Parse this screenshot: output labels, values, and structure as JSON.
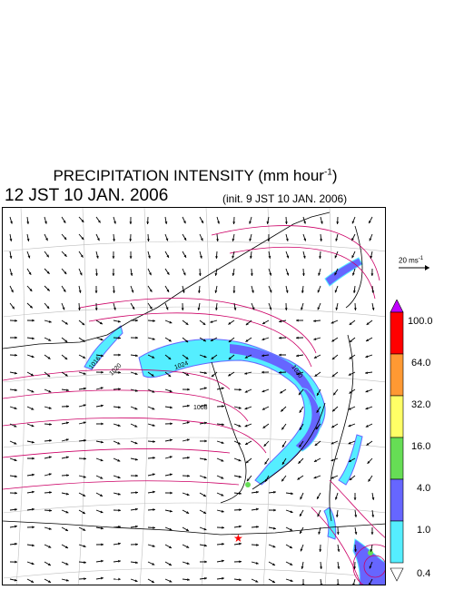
{
  "title": {
    "main": "PRECIPITATION INTENSITY (mm hour",
    "sup": "-1",
    "close": ")"
  },
  "subtitle": {
    "valid": "12 JST 10 JAN. 2006",
    "init": "(init. 9 JST 10 JAN. 2006)"
  },
  "reference_vector": {
    "label": "20 ms",
    "sup": "-1",
    "speed_ms": 20
  },
  "colorbar": {
    "levels": [
      "100.0",
      "64.0",
      "32.0",
      "16.0",
      "4.0",
      "1.0",
      "0.4"
    ],
    "colors": [
      "#c000ff",
      "#ff0000",
      "#ff9933",
      "#ffff66",
      "#66dd55",
      "#6666ff",
      "#55eeff",
      "#ffffff"
    ],
    "bin_colors_top_to_bottom": [
      "#ff0000",
      "#ff9933",
      "#ffff66",
      "#66dd55",
      "#6666ff",
      "#55eeff"
    ]
  },
  "map": {
    "isobar_color": "#cc0066",
    "grid_color": "#bfbfbf",
    "coast_color": "#000000",
    "wind_arrow_color": "#000000",
    "isobar_labels": [
      "1008",
      "1016",
      "1020",
      "1024"
    ],
    "marker": {
      "symbol": "★",
      "color": "#ff0000"
    }
  }
}
